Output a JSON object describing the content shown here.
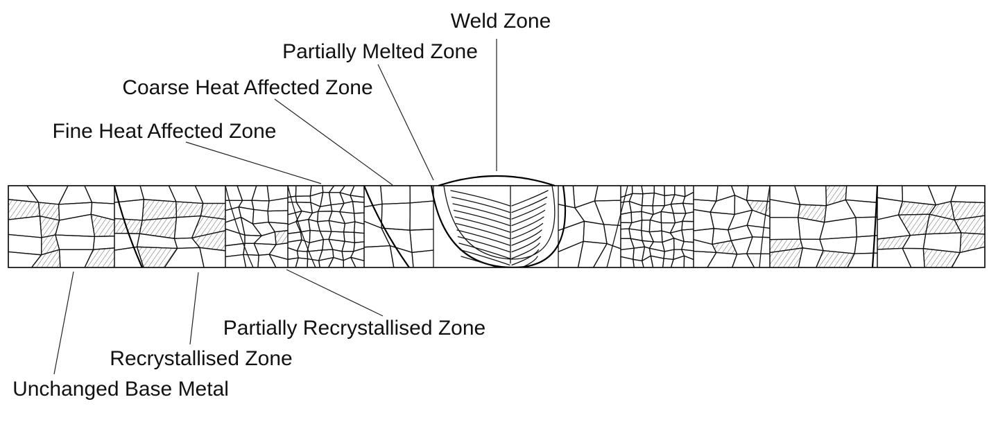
{
  "diagram": {
    "labels": {
      "weld_zone": "Weld Zone",
      "partially_melted_zone": "Partially Melted Zone",
      "coarse_haz": "Coarse Heat Affected Zone",
      "fine_haz": "Fine Heat Affected Zone",
      "partially_recrystallised_zone": "Partially Recrystallised Zone",
      "recrystallised_zone": "Recrystallised Zone",
      "unchanged_base_metal": "Unchanged Base Metal"
    },
    "colors": {
      "line": "#000000",
      "background": "#ffffff"
    }
  }
}
